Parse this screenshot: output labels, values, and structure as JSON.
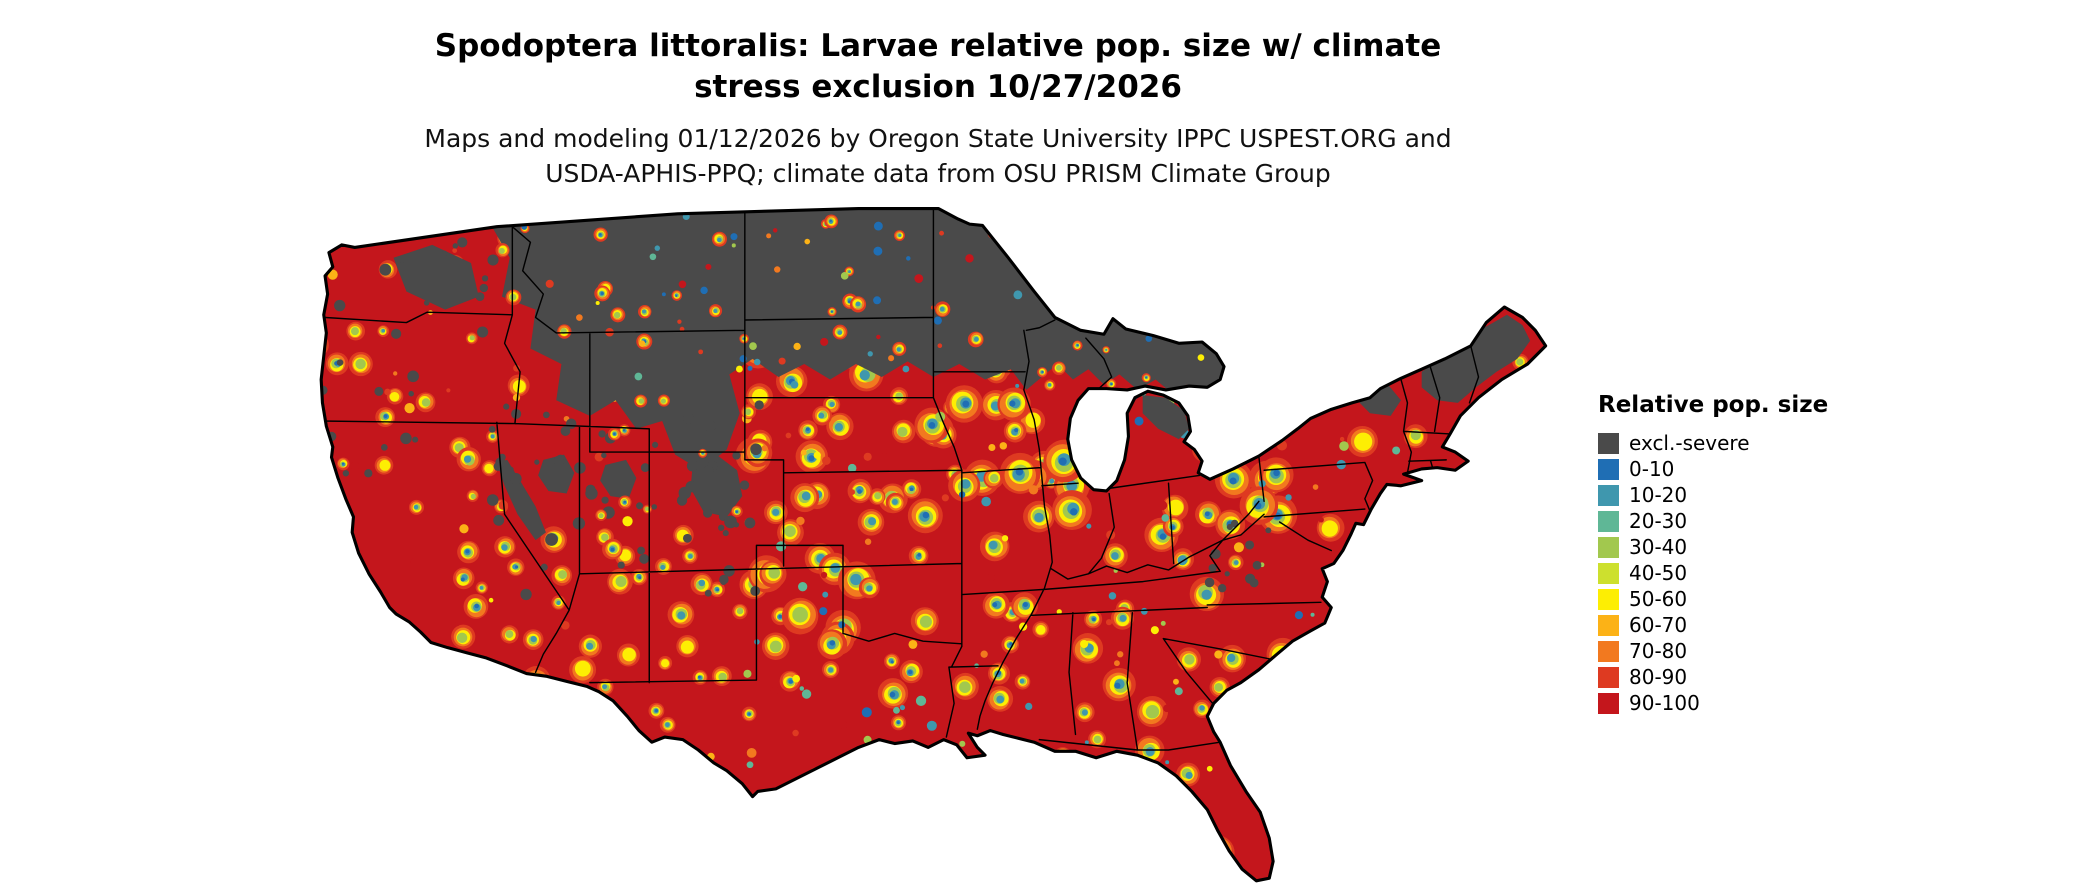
{
  "figure": {
    "title_line1": "Spodoptera littoralis: Larvae relative pop. size w/ climate",
    "title_line2": "stress exclusion 10/27/2026",
    "subtitle_line1": "Maps and modeling 01/12/2026 by Oregon State University IPPC USPEST.ORG and",
    "subtitle_line2": "USDA-APHIS-PPQ; climate data from OSU PRISM Climate Group"
  },
  "legend": {
    "title": "Relative pop. size",
    "items": [
      {
        "label": "excl.-severe",
        "color": "#4a4a4a"
      },
      {
        "label": "0-10",
        "color": "#1f6eb4"
      },
      {
        "label": "10-20",
        "color": "#3f97ae"
      },
      {
        "label": "20-30",
        "color": "#5fb796"
      },
      {
        "label": "30-40",
        "color": "#a2c84e"
      },
      {
        "label": "40-50",
        "color": "#cde02e"
      },
      {
        "label": "50-60",
        "color": "#fdee03"
      },
      {
        "label": "60-70",
        "color": "#fcb216"
      },
      {
        "label": "70-80",
        "color": "#f2791f"
      },
      {
        "label": "80-90",
        "color": "#de3a21"
      },
      {
        "label": "90-100",
        "color": "#c4161c"
      }
    ]
  },
  "map": {
    "excluded_label": "excl.-severe",
    "excluded_color": "#4a4a4a",
    "border_color": "#000000",
    "water_color": "#ffffff"
  }
}
